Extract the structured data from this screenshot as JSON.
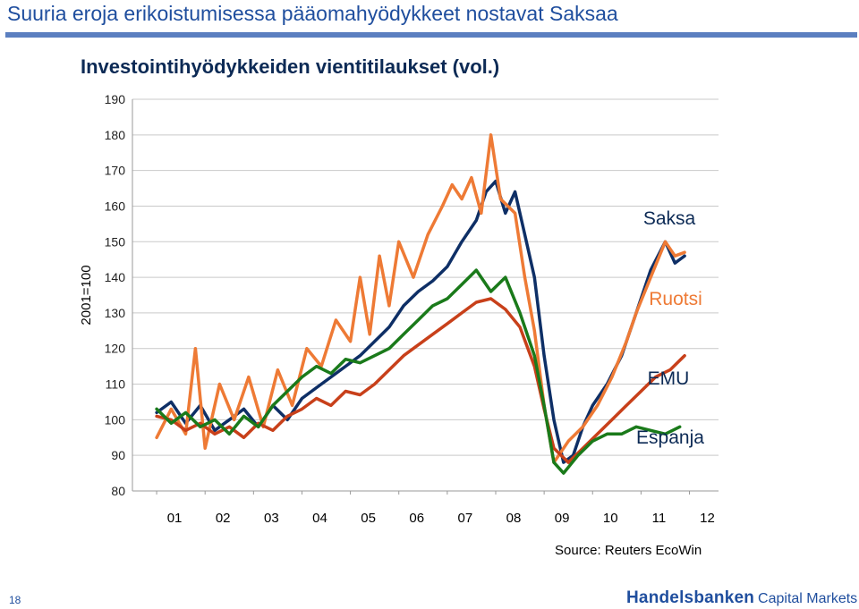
{
  "slide": {
    "title": "Suuria eroja erikoistumisessa pääomahyödykkeet nostavat Saksaa",
    "page_number": "18",
    "source": "Source: Reuters EcoWin",
    "logo_brand": "Handelsbanken",
    "logo_sub": "Capital Markets",
    "accent_color": "#1f4e9e"
  },
  "chart_data": {
    "type": "line",
    "title": "Investointihyödykkeiden vientitilaukset (vol.)",
    "ylabel": "2001=100",
    "xlabel": "",
    "ylim": [
      80,
      190
    ],
    "xlim": [
      2000.5,
      2012.6
    ],
    "yticks": [
      80,
      90,
      100,
      110,
      120,
      130,
      140,
      150,
      160,
      170,
      180,
      190
    ],
    "xtick_labels": [
      "01",
      "02",
      "03",
      "04",
      "05",
      "06",
      "07",
      "08",
      "09",
      "10",
      "11",
      "12"
    ],
    "xtick_positions": [
      2001,
      2002,
      2003,
      2004,
      2005,
      2006,
      2007,
      2008,
      2009,
      2010,
      2011,
      2012
    ],
    "grid": true,
    "legend": "direct labels at right",
    "series": [
      {
        "name": "Saksa",
        "color": "#0e2f66",
        "points": [
          [
            2001.0,
            102
          ],
          [
            2001.3,
            105
          ],
          [
            2001.6,
            99
          ],
          [
            2001.9,
            104
          ],
          [
            2002.2,
            97
          ],
          [
            2002.5,
            100
          ],
          [
            2002.8,
            103
          ],
          [
            2003.1,
            98
          ],
          [
            2003.4,
            104
          ],
          [
            2003.7,
            100
          ],
          [
            2004.0,
            106
          ],
          [
            2004.3,
            109
          ],
          [
            2004.6,
            112
          ],
          [
            2004.9,
            115
          ],
          [
            2005.2,
            118
          ],
          [
            2005.5,
            122
          ],
          [
            2005.8,
            126
          ],
          [
            2006.1,
            132
          ],
          [
            2006.4,
            136
          ],
          [
            2006.7,
            139
          ],
          [
            2007.0,
            143
          ],
          [
            2007.3,
            150
          ],
          [
            2007.6,
            156
          ],
          [
            2007.8,
            164
          ],
          [
            2008.0,
            167
          ],
          [
            2008.2,
            158
          ],
          [
            2008.4,
            164
          ],
          [
            2008.6,
            152
          ],
          [
            2008.8,
            140
          ],
          [
            2009.0,
            118
          ],
          [
            2009.2,
            100
          ],
          [
            2009.4,
            88
          ],
          [
            2009.6,
            90
          ],
          [
            2009.8,
            98
          ],
          [
            2010.0,
            104
          ],
          [
            2010.3,
            110
          ],
          [
            2010.6,
            118
          ],
          [
            2010.9,
            130
          ],
          [
            2011.2,
            142
          ],
          [
            2011.5,
            150
          ],
          [
            2011.7,
            144
          ],
          [
            2011.9,
            146
          ]
        ]
      },
      {
        "name": "Ruotsi",
        "color": "#ee7a35",
        "points": [
          [
            2001.0,
            95
          ],
          [
            2001.3,
            103
          ],
          [
            2001.6,
            96
          ],
          [
            2001.8,
            120
          ],
          [
            2002.0,
            92
          ],
          [
            2002.3,
            110
          ],
          [
            2002.6,
            100
          ],
          [
            2002.9,
            112
          ],
          [
            2003.2,
            98
          ],
          [
            2003.5,
            114
          ],
          [
            2003.8,
            104
          ],
          [
            2004.1,
            120
          ],
          [
            2004.4,
            115
          ],
          [
            2004.7,
            128
          ],
          [
            2005.0,
            122
          ],
          [
            2005.2,
            140
          ],
          [
            2005.4,
            124
          ],
          [
            2005.6,
            146
          ],
          [
            2005.8,
            132
          ],
          [
            2006.0,
            150
          ],
          [
            2006.3,
            140
          ],
          [
            2006.6,
            152
          ],
          [
            2006.9,
            160
          ],
          [
            2007.1,
            166
          ],
          [
            2007.3,
            162
          ],
          [
            2007.5,
            168
          ],
          [
            2007.7,
            158
          ],
          [
            2007.9,
            180
          ],
          [
            2008.1,
            162
          ],
          [
            2008.4,
            158
          ],
          [
            2008.6,
            140
          ],
          [
            2008.8,
            125
          ],
          [
            2009.0,
            104
          ],
          [
            2009.2,
            88
          ],
          [
            2009.5,
            94
          ],
          [
            2009.8,
            98
          ],
          [
            2010.1,
            104
          ],
          [
            2010.4,
            112
          ],
          [
            2010.7,
            122
          ],
          [
            2010.9,
            130
          ],
          [
            2011.2,
            140
          ],
          [
            2011.5,
            150
          ],
          [
            2011.7,
            146
          ],
          [
            2011.9,
            147
          ]
        ]
      },
      {
        "name": "EMU",
        "color": "#c8401a",
        "points": [
          [
            2001.0,
            101
          ],
          [
            2001.3,
            100
          ],
          [
            2001.6,
            97
          ],
          [
            2001.9,
            99
          ],
          [
            2002.2,
            96
          ],
          [
            2002.5,
            98
          ],
          [
            2002.8,
            95
          ],
          [
            2003.1,
            99
          ],
          [
            2003.4,
            97
          ],
          [
            2003.7,
            101
          ],
          [
            2004.0,
            103
          ],
          [
            2004.3,
            106
          ],
          [
            2004.6,
            104
          ],
          [
            2004.9,
            108
          ],
          [
            2005.2,
            107
          ],
          [
            2005.5,
            110
          ],
          [
            2005.8,
            114
          ],
          [
            2006.1,
            118
          ],
          [
            2006.4,
            121
          ],
          [
            2006.7,
            124
          ],
          [
            2007.0,
            127
          ],
          [
            2007.3,
            130
          ],
          [
            2007.6,
            133
          ],
          [
            2007.9,
            134
          ],
          [
            2008.2,
            131
          ],
          [
            2008.5,
            126
          ],
          [
            2008.8,
            115
          ],
          [
            2009.0,
            103
          ],
          [
            2009.2,
            92
          ],
          [
            2009.5,
            88
          ],
          [
            2009.8,
            92
          ],
          [
            2010.1,
            96
          ],
          [
            2010.4,
            100
          ],
          [
            2010.7,
            104
          ],
          [
            2011.0,
            108
          ],
          [
            2011.3,
            112
          ],
          [
            2011.6,
            114
          ],
          [
            2011.9,
            118
          ]
        ]
      },
      {
        "name": "Espanja",
        "color": "#1a7a1a",
        "points": [
          [
            2001.0,
            103
          ],
          [
            2001.3,
            99
          ],
          [
            2001.6,
            102
          ],
          [
            2001.9,
            98
          ],
          [
            2002.2,
            100
          ],
          [
            2002.5,
            96
          ],
          [
            2002.8,
            101
          ],
          [
            2003.1,
            98
          ],
          [
            2003.4,
            104
          ],
          [
            2003.7,
            108
          ],
          [
            2004.0,
            112
          ],
          [
            2004.3,
            115
          ],
          [
            2004.6,
            113
          ],
          [
            2004.9,
            117
          ],
          [
            2005.2,
            116
          ],
          [
            2005.5,
            118
          ],
          [
            2005.8,
            120
          ],
          [
            2006.1,
            124
          ],
          [
            2006.4,
            128
          ],
          [
            2006.7,
            132
          ],
          [
            2007.0,
            134
          ],
          [
            2007.3,
            138
          ],
          [
            2007.6,
            142
          ],
          [
            2007.9,
            136
          ],
          [
            2008.2,
            140
          ],
          [
            2008.5,
            130
          ],
          [
            2008.8,
            118
          ],
          [
            2009.0,
            104
          ],
          [
            2009.2,
            88
          ],
          [
            2009.4,
            85
          ],
          [
            2009.7,
            90
          ],
          [
            2010.0,
            94
          ],
          [
            2010.3,
            96
          ],
          [
            2010.6,
            96
          ],
          [
            2010.9,
            98
          ],
          [
            2011.2,
            97
          ],
          [
            2011.5,
            96
          ],
          [
            2011.8,
            98
          ]
        ]
      }
    ]
  }
}
